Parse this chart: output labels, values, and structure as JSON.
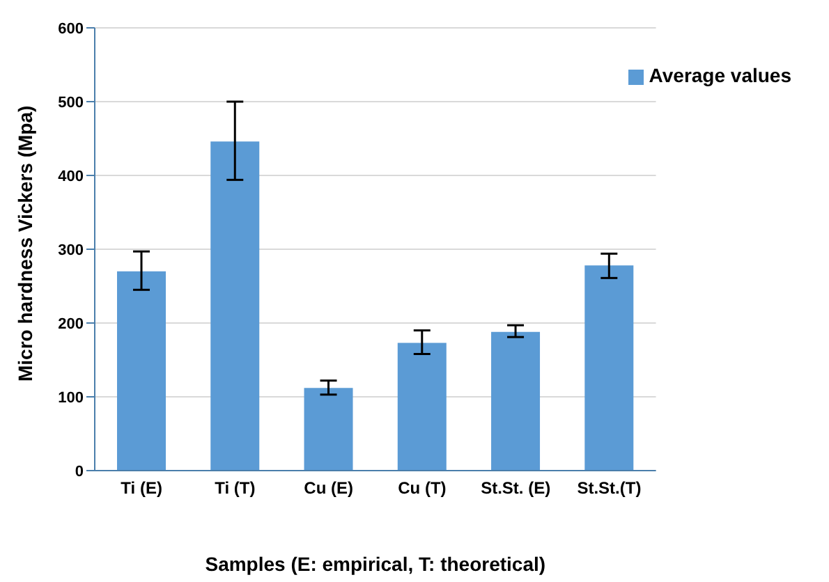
{
  "chart_data": {
    "type": "bar",
    "xlabel": "Samples (E: empirical, T: theoretical)",
    "ylabel": "Micro hardness Vickers (Mpa)",
    "categories": [
      "Ti (E)",
      "Ti (T)",
      "Cu (E)",
      "Cu (T)",
      "St.St. (E)",
      "St.St.(T)"
    ],
    "series": [
      {
        "name": "Average values",
        "color": "#5b9bd5",
        "values": [
          270,
          446,
          112,
          173,
          188,
          278
        ],
        "errors": [
          [
            245,
            297
          ],
          [
            394,
            500
          ],
          [
            103,
            122
          ],
          [
            158,
            190
          ],
          [
            181,
            197
          ],
          [
            261,
            294
          ]
        ]
      }
    ],
    "ylim": [
      0,
      600
    ],
    "yticks": [
      0,
      100,
      200,
      300,
      400,
      500,
      600
    ],
    "grid": "y",
    "legend": "top right"
  }
}
